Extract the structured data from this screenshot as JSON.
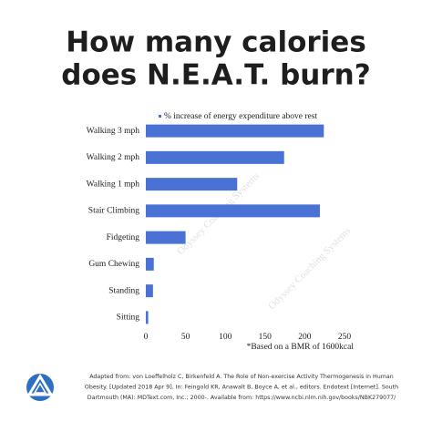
{
  "chart_data": {
    "type": "bar",
    "orientation": "horizontal",
    "title": [
      "How many calories",
      "does N.E.A.T. burn?"
    ],
    "categories": [
      "Walking 3 mph",
      "Walking 2 mph",
      "Walking 1 mph",
      "Stair Climbing",
      "Fidgeting",
      "Gum Chewing",
      "Standing",
      "Sitting"
    ],
    "series": [
      {
        "name": "% increase of energy expenditure above rest",
        "color": "#4a72d4",
        "values": [
          224,
          174,
          115,
          219,
          50,
          10,
          9,
          3
        ]
      }
    ],
    "xlim": [
      0,
      250
    ],
    "xticks": [
      0,
      50,
      100,
      150,
      200,
      250
    ],
    "grid": false,
    "legend": "top",
    "footnote": "*Based on a BMR of 1600kcal",
    "watermark": "Odyssey Coaching Systems"
  },
  "citation": [
    "Adapted from: von Loeffelholz C, Birkenfeld A. The Role of Non-exercise Activity Thermogenesis in Human",
    "Obesity. [Updated 2018 Apr 9]. In: Feingold KR, Anawalt B, Boyce A, et al., editors. Endotext [Internet]. South",
    "Dartmouth (MA): MDText.com, Inc.; 2000-. Available from: https://www.ncbi.nlm.nih.gov/books/NBK279077/"
  ]
}
